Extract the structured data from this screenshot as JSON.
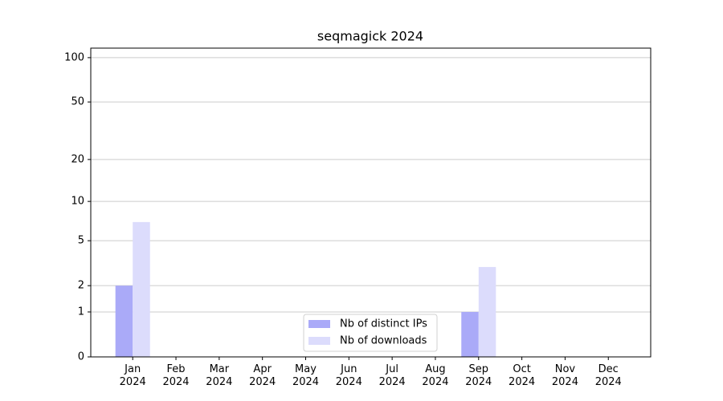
{
  "chart_data": {
    "type": "bar",
    "title": "seqmagick 2024",
    "categories": [
      "Jan\n2024",
      "Feb\n2024",
      "Mar\n2024",
      "Apr\n2024",
      "May\n2024",
      "Jun\n2024",
      "Jul\n2024",
      "Aug\n2024",
      "Sep\n2024",
      "Oct\n2024",
      "Nov\n2024",
      "Dec\n2024"
    ],
    "series": [
      {
        "name": "Nb of distinct IPs",
        "color": "#aaaaf8",
        "values": [
          2,
          0,
          0,
          0,
          0,
          0,
          0,
          0,
          1,
          0,
          0,
          0
        ]
      },
      {
        "name": "Nb of downloads",
        "color": "#dcdcfc",
        "values": [
          7,
          0,
          0,
          0,
          0,
          0,
          0,
          0,
          3,
          0,
          0,
          0
        ]
      }
    ],
    "yscale": "log1p",
    "ylim": [
      0,
      116
    ],
    "yticks": [
      0,
      1,
      2,
      5,
      10,
      20,
      50,
      100
    ],
    "grid": true,
    "legend": "lower center"
  }
}
